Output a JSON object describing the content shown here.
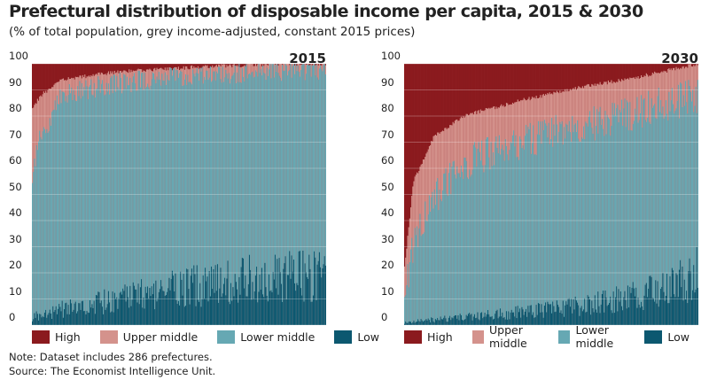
{
  "title": "Prefectural distribution of disposable income per capita, 2015 & 2030",
  "subtitle": "(% of total population, grey income-adjusted, constant 2015 prices)",
  "note": "Note: Dataset includes 286 prefectures.",
  "source": "Source: The Economist Intelligence Unit.",
  "colors": {
    "High": "#8b1a1e",
    "Upper middle": "#d4928c",
    "Lower middle": "#66a8b3",
    "Low": "#0c5870"
  },
  "chart_data": [
    {
      "type": "bar",
      "stacked": true,
      "label": "2015",
      "n_categories": 286,
      "ylim": [
        0,
        100
      ],
      "yticks": [
        "0",
        "10",
        "20",
        "30",
        "40",
        "50",
        "60",
        "70",
        "80",
        "90",
        "100"
      ],
      "legend": [
        "High",
        "Upper middle",
        "Lower middle",
        "Low"
      ],
      "legend_position": "bottom",
      "categories_ordered_by": "share of High, descending",
      "series_profile": [
        {
          "name": "Low",
          "points": [
            [
              0,
              3
            ],
            [
              0.1,
              6
            ],
            [
              0.3,
              10
            ],
            [
              0.5,
              14
            ],
            [
              0.7,
              17
            ],
            [
              1,
              20
            ]
          ]
        },
        {
          "name": "Lower middle",
          "points": [
            [
              0,
              58
            ],
            [
              0.02,
              70
            ],
            [
              0.1,
              88
            ],
            [
              0.25,
              92
            ],
            [
              0.5,
              95
            ],
            [
              0.8,
              97
            ],
            [
              1,
              98
            ]
          ]
        },
        {
          "name": "Upper middle",
          "points": [
            [
              0,
              83
            ],
            [
              0.03,
              88
            ],
            [
              0.1,
              94
            ],
            [
              0.3,
              97
            ],
            [
              0.6,
              99
            ],
            [
              0.85,
              100
            ],
            [
              1,
              100
            ]
          ]
        },
        {
          "name": "High",
          "points": [
            [
              0,
              100
            ],
            [
              1,
              100
            ]
          ]
        }
      ]
    },
    {
      "type": "bar",
      "stacked": true,
      "label": "2030",
      "n_categories": 286,
      "ylim": [
        0,
        100
      ],
      "yticks": [
        "0",
        "10",
        "20",
        "30",
        "40",
        "50",
        "60",
        "70",
        "80",
        "90",
        "100"
      ],
      "legend": [
        "High",
        "Upper middle",
        "Lower middle",
        "Low"
      ],
      "legend_position": "bottom",
      "categories_ordered_by": "share of High, descending",
      "series_profile": [
        {
          "name": "Low",
          "points": [
            [
              0,
              1
            ],
            [
              0.1,
              2
            ],
            [
              0.3,
              4
            ],
            [
              0.5,
              6
            ],
            [
              0.7,
              9
            ],
            [
              0.9,
              14
            ],
            [
              1,
              20
            ]
          ]
        },
        {
          "name": "Lower middle",
          "points": [
            [
              0,
              12
            ],
            [
              0.03,
              30
            ],
            [
              0.1,
              48
            ],
            [
              0.2,
              62
            ],
            [
              0.4,
              70
            ],
            [
              0.6,
              76
            ],
            [
              0.8,
              82
            ],
            [
              1,
              88
            ]
          ]
        },
        {
          "name": "Upper middle",
          "points": [
            [
              0,
              22
            ],
            [
              0.03,
              55
            ],
            [
              0.1,
              72
            ],
            [
              0.2,
              80
            ],
            [
              0.4,
              86
            ],
            [
              0.6,
              91
            ],
            [
              0.8,
              95
            ],
            [
              1,
              100
            ]
          ]
        },
        {
          "name": "High",
          "points": [
            [
              0,
              100
            ],
            [
              1,
              100
            ]
          ]
        }
      ]
    }
  ]
}
